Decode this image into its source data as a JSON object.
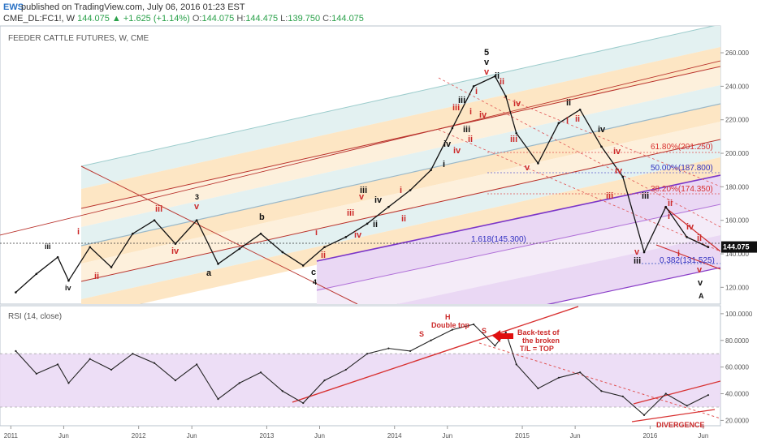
{
  "header": {
    "logo": "EWS",
    "published": "published on TradingView.com, July 06, 2016 01:23 EST",
    "symbol": "CME_DL:FC1!, W",
    "last": "144.075",
    "change": "▲ +1.625 (+1.14%)",
    "o_label": "O:",
    "o": "144.075",
    "h_label": "H:",
    "h": "144.475",
    "l_label": "L:",
    "l": "139.750",
    "c_label": "C:",
    "c": "144.075"
  },
  "chart_data": [
    {
      "type": "line",
      "title": "FEEDER CATTLE FUTURES, W, CME",
      "ylim": [
        110,
        276
      ],
      "yticks": [
        "120.000",
        "140.000",
        "160.000",
        "180.000",
        "200.000",
        "220.000",
        "240.000",
        "260.000"
      ],
      "xticks": [
        "2011",
        "Jun",
        "2012",
        "Jun",
        "2013",
        "Jun",
        "2014",
        "Jun",
        "2015",
        "Jun",
        "2016",
        "Jun"
      ],
      "last_price_label": "144.075",
      "last_price": 144.075,
      "series": [
        {
          "x": [
            "2011-01",
            "2011-03",
            "2011-05",
            "2011-06",
            "2011-08",
            "2011-10",
            "2011-12",
            "2012-02",
            "2012-04",
            "2012-06",
            "2012-08",
            "2012-10",
            "2012-12",
            "2013-02",
            "2013-04",
            "2013-06",
            "2013-08",
            "2013-10",
            "2013-12",
            "2014-02",
            "2014-04",
            "2014-06",
            "2014-08",
            "2014-10",
            "2014-11",
            "2014-12",
            "2015-02",
            "2015-04",
            "2015-06",
            "2015-08",
            "2015-10",
            "2015-12",
            "2016-02",
            "2016-04",
            "2016-06"
          ],
          "values": [
            117,
            128,
            138,
            124,
            144,
            132,
            152,
            160,
            146,
            160,
            134,
            143,
            152,
            141,
            133,
            144,
            150,
            158,
            168,
            178,
            190,
            215,
            240,
            246,
            234,
            212,
            194,
            218,
            226,
            204,
            186,
            141,
            168,
            150,
            144
          ]
        }
      ],
      "fib_labels": [
        "61.80%(201.250)",
        "50.00%(187.800)",
        "38.20%(174.350)",
        "1.618(145.300)",
        "0.382(131.525)"
      ],
      "wave_labels": {
        "top": [
          "5",
          "v",
          "v",
          "iii",
          "i",
          "iii",
          "iv",
          "iv",
          "ii",
          "iv",
          "i",
          "ii",
          "iii",
          "iv",
          "ii",
          "i",
          "v",
          "i",
          "iii",
          "iv",
          "ii",
          "v"
        ],
        "left": [
          "iii",
          "iv",
          "i",
          "ii",
          "iii",
          "iv",
          "3",
          "v",
          "a",
          "b",
          "c",
          "4",
          "i",
          "ii",
          "iii",
          "iv",
          "ii",
          "i",
          "ii",
          "iii",
          "iv"
        ],
        "right": [
          "iii",
          "ii",
          "ii",
          "iv",
          "iii",
          "i",
          "iv",
          "ii",
          "iii",
          "v",
          "i",
          "iv",
          "v",
          "v",
          "A"
        ]
      }
    },
    {
      "type": "line",
      "title": "RSI (14, close)",
      "ylim": [
        16,
        106
      ],
      "yticks": [
        "20.0000",
        "40.0000",
        "60.0000",
        "80.0000",
        "100.0000"
      ],
      "band": [
        30,
        70
      ],
      "series": [
        {
          "x": [
            "2011-01",
            "2011-03",
            "2011-05",
            "2011-06",
            "2011-08",
            "2011-10",
            "2011-12",
            "2012-02",
            "2012-04",
            "2012-06",
            "2012-08",
            "2012-10",
            "2012-12",
            "2013-02",
            "2013-04",
            "2013-06",
            "2013-08",
            "2013-10",
            "2013-12",
            "2014-02",
            "2014-04",
            "2014-06",
            "2014-08",
            "2014-10",
            "2014-11",
            "2014-12",
            "2015-02",
            "2015-04",
            "2015-06",
            "2015-08",
            "2015-10",
            "2015-12",
            "2016-02",
            "2016-04",
            "2016-06"
          ],
          "values": [
            72,
            55,
            62,
            48,
            66,
            58,
            70,
            63,
            50,
            62,
            36,
            48,
            56,
            42,
            33,
            50,
            58,
            70,
            74,
            72,
            80,
            88,
            92,
            76,
            86,
            62,
            44,
            52,
            56,
            42,
            38,
            24,
            40,
            31,
            39
          ]
        }
      ],
      "annotations": [
        "S",
        "H",
        "Double top",
        "S",
        "Back-test of",
        "the broken",
        "T/L = TOP",
        "DIVERGENCE"
      ]
    }
  ]
}
